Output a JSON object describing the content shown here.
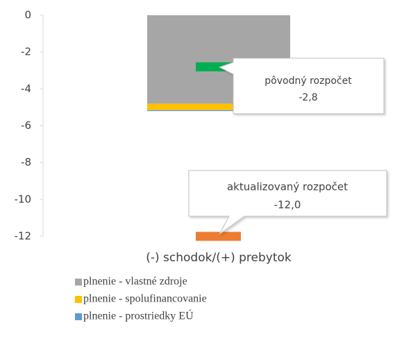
{
  "chart_data": {
    "type": "bar",
    "stacked": true,
    "categories": [
      "(-) schodok/(+) prebytok"
    ],
    "series": [
      {
        "name": "plnenie - vlastné zdroje",
        "color": "#a6a6a6",
        "values": [
          -4.8
        ]
      },
      {
        "name": "plnenie - spolufinancovanie",
        "color": "#ffc000",
        "values": [
          -0.35
        ]
      },
      {
        "name": "plnenie - prostriedky EÚ",
        "color": "#5b9bd5",
        "values": [
          -0.05
        ]
      }
    ],
    "annotations": [
      {
        "text": "pôvodný rozpočet",
        "value": -2.8,
        "value_label": "-2,8",
        "color": "#00b050"
      },
      {
        "text": "aktualizovaný rozpočet",
        "value": -12.0,
        "value_label": "-12,0",
        "color": "#ed7d31"
      }
    ],
    "ylim": [
      -12,
      0
    ],
    "yticks": [
      0,
      -2,
      -4,
      -6,
      -8,
      -10,
      -12
    ],
    "legend": "bottom"
  }
}
